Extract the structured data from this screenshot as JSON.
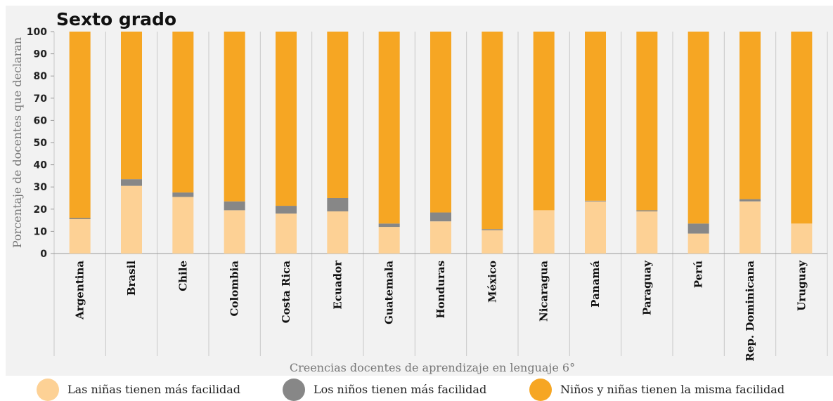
{
  "chart_data": {
    "type": "bar",
    "stacked": true,
    "title": "Sexto grado",
    "xlabel": "Creencias docentes de aprendizaje en lenguaje 6°",
    "ylabel": "Porcentaje de docentes que declaran",
    "ylim": [
      0,
      100
    ],
    "yticks": [
      0,
      10,
      20,
      30,
      40,
      50,
      60,
      70,
      80,
      90,
      100
    ],
    "grid": false,
    "legend_position": "bottom",
    "categories": [
      "Argentina",
      "Brasil",
      "Chile",
      "Colombia",
      "Costa Rica",
      "Ecuador",
      "Guatemala",
      "Honduras",
      "México",
      "Nicaragua",
      "Panamá",
      "Paraguay",
      "Perú",
      "Rep. Dominicana",
      "Uruguay"
    ],
    "series": [
      {
        "name": "Las niñas tienen más facilidad",
        "color": "#fdd195",
        "values": [
          15.5,
          30.5,
          25.5,
          19.5,
          18.0,
          19.0,
          12.0,
          14.5,
          10.5,
          19.5,
          23.5,
          19.0,
          9.0,
          23.5,
          13.5
        ]
      },
      {
        "name": "Los niños tienen más facilidad",
        "color": "#878787",
        "values": [
          0.5,
          3.0,
          2.0,
          4.0,
          3.5,
          6.0,
          1.5,
          4.0,
          0.5,
          0.0,
          0.3,
          0.5,
          4.5,
          1.0,
          0.0
        ]
      },
      {
        "name": "Niños y niñas tienen la misma facilidad",
        "color": "#f6a623",
        "values": [
          84.0,
          66.5,
          72.5,
          76.5,
          78.5,
          75.0,
          86.5,
          81.5,
          89.0,
          80.5,
          76.2,
          80.5,
          86.5,
          75.5,
          86.5
        ]
      }
    ]
  }
}
